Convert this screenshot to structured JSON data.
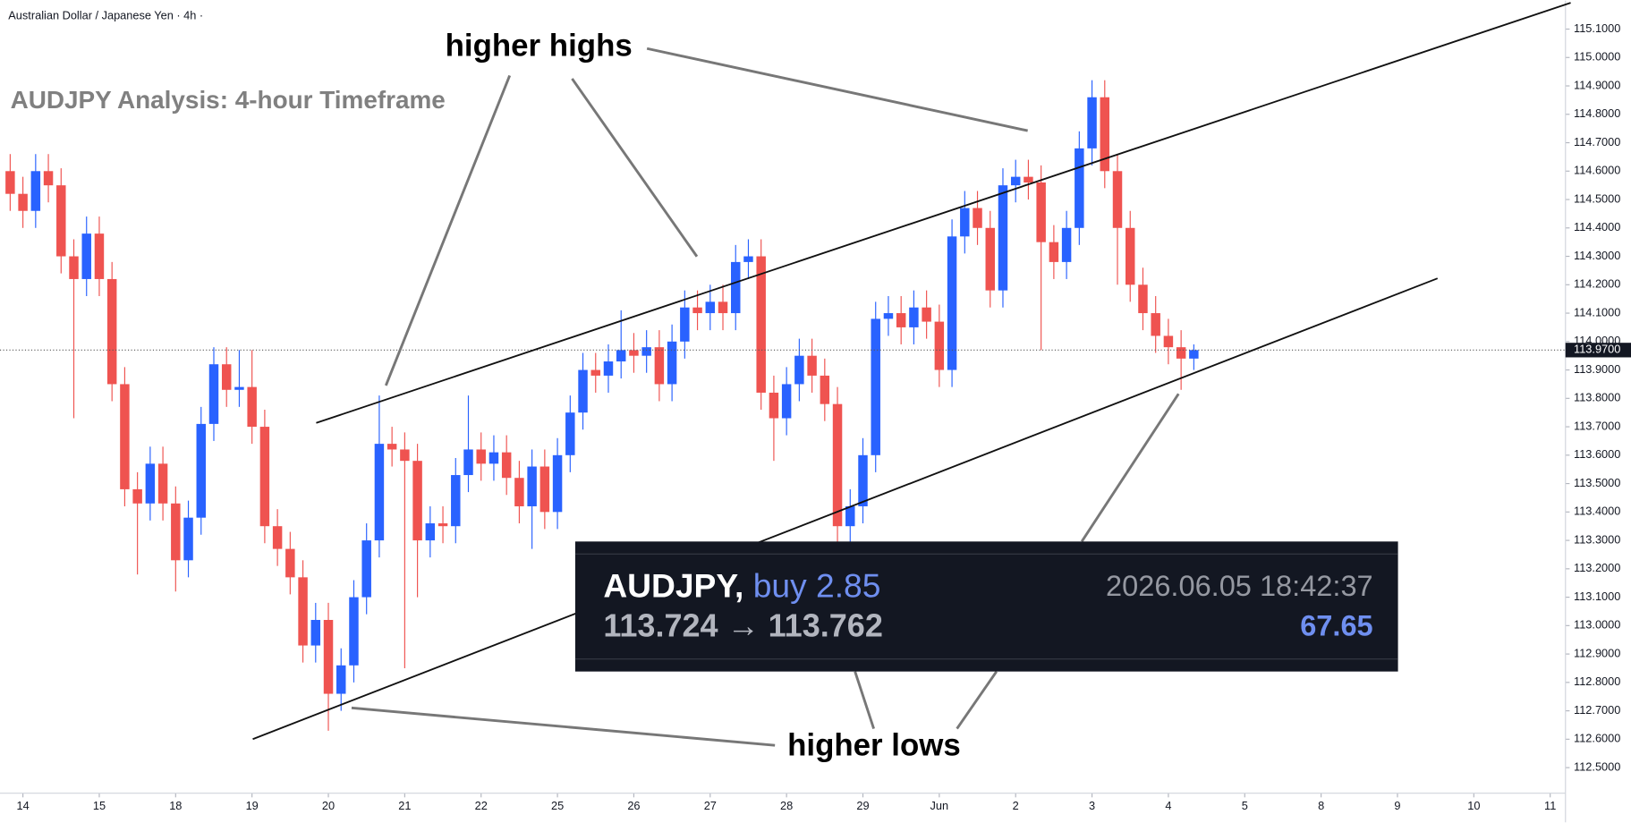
{
  "chart_data": {
    "type": "candlestick",
    "header": "Australian Dollar / Japanese Yen · 4h ·",
    "title": "AUDJPY Analysis: 4-hour Timeframe",
    "annotations": [
      {
        "text": "higher highs"
      },
      {
        "text": "higher lows"
      }
    ],
    "trade": {
      "symbol": "AUDJPY,",
      "side": "buy 2.85",
      "timestamp": "2026.06.05 18:42:37",
      "prices": "113.724 → 113.762",
      "result": "67.65"
    },
    "current_price": {
      "value": 113.97,
      "label": "113.9700"
    },
    "up_color": "#2962ff",
    "down_color": "#ef5350",
    "open": [
      114.6,
      114.52,
      114.46,
      114.6,
      114.55,
      114.3,
      114.22,
      114.38,
      114.22,
      113.85,
      113.48,
      113.43,
      113.57,
      113.43,
      113.23,
      113.38,
      113.71,
      113.92,
      113.83,
      113.84,
      113.7,
      113.35,
      113.27,
      113.17,
      112.93,
      113.02,
      112.76,
      112.86,
      113.1,
      113.3,
      113.64,
      113.62,
      113.58,
      113.3,
      113.36,
      113.35,
      113.53,
      113.62,
      113.57,
      113.61,
      113.52,
      113.42,
      113.56,
      113.4,
      113.6,
      113.75,
      113.9,
      113.88,
      113.93,
      113.97,
      113.95,
      113.98,
      113.85,
      114.0,
      114.12,
      114.1,
      114.14,
      114.1,
      114.28,
      114.3,
      113.82,
      113.73,
      113.85,
      113.95,
      113.88,
      113.78,
      113.35,
      113.42,
      113.6,
      114.08,
      114.1,
      114.05,
      114.12,
      114.07,
      113.9,
      114.37,
      114.47,
      114.4,
      114.18,
      114.55,
      114.58,
      114.56,
      114.35,
      114.28,
      114.4,
      114.68,
      114.86,
      114.6,
      114.4,
      114.2,
      114.1,
      114.02,
      113.98,
      113.94
    ],
    "high": [
      114.66,
      114.58,
      114.66,
      114.66,
      114.61,
      114.36,
      114.44,
      114.44,
      114.28,
      113.91,
      113.54,
      113.63,
      113.63,
      113.49,
      113.44,
      113.77,
      113.98,
      113.98,
      113.97,
      113.97,
      113.76,
      113.41,
      113.33,
      113.23,
      113.08,
      113.08,
      112.92,
      113.16,
      113.36,
      113.81,
      113.7,
      113.68,
      113.64,
      113.42,
      113.42,
      113.59,
      113.81,
      113.68,
      113.67,
      113.67,
      113.58,
      113.62,
      113.62,
      113.66,
      113.81,
      113.96,
      113.96,
      113.99,
      114.11,
      114.03,
      114.04,
      114.04,
      114.06,
      114.18,
      114.18,
      114.2,
      114.2,
      114.34,
      114.36,
      114.36,
      113.88,
      113.91,
      114.01,
      114.01,
      113.94,
      113.84,
      113.48,
      113.66,
      114.14,
      114.16,
      114.16,
      114.18,
      114.18,
      114.13,
      114.43,
      114.53,
      114.53,
      114.46,
      114.61,
      114.64,
      114.64,
      114.62,
      114.41,
      114.46,
      114.74,
      114.92,
      114.92,
      114.66,
      114.46,
      114.26,
      114.16,
      114.08,
      114.04,
      113.99
    ],
    "low": [
      114.46,
      114.4,
      114.4,
      114.49,
      114.24,
      113.73,
      114.16,
      114.16,
      113.79,
      113.42,
      113.18,
      113.37,
      113.37,
      113.12,
      113.17,
      113.32,
      113.65,
      113.77,
      113.77,
      113.64,
      113.29,
      113.21,
      113.11,
      112.87,
      112.87,
      112.63,
      112.7,
      112.8,
      113.04,
      113.24,
      113.56,
      112.85,
      113.1,
      113.24,
      113.29,
      113.29,
      113.47,
      113.51,
      113.51,
      113.46,
      113.36,
      113.27,
      113.34,
      113.34,
      113.54,
      113.69,
      113.82,
      113.82,
      113.87,
      113.89,
      113.89,
      113.79,
      113.79,
      113.94,
      114.04,
      114.04,
      114.04,
      114.04,
      114.22,
      113.76,
      113.58,
      113.67,
      113.79,
      113.82,
      113.72,
      113.29,
      113.29,
      113.36,
      113.54,
      114.02,
      113.99,
      113.99,
      114.01,
      113.84,
      113.84,
      114.31,
      114.34,
      114.12,
      114.12,
      114.49,
      114.5,
      113.97,
      114.22,
      114.22,
      114.34,
      114.62,
      114.54,
      114.2,
      114.14,
      114.04,
      113.96,
      113.92,
      113.83,
      113.9
    ],
    "close": [
      114.52,
      114.46,
      114.6,
      114.55,
      114.3,
      114.22,
      114.38,
      114.22,
      113.85,
      113.48,
      113.43,
      113.57,
      113.43,
      113.23,
      113.38,
      113.71,
      113.92,
      113.83,
      113.84,
      113.7,
      113.35,
      113.27,
      113.17,
      112.93,
      113.02,
      112.76,
      112.86,
      113.1,
      113.3,
      113.64,
      113.62,
      113.58,
      113.3,
      113.36,
      113.35,
      113.53,
      113.62,
      113.57,
      113.61,
      113.52,
      113.42,
      113.56,
      113.4,
      113.6,
      113.75,
      113.9,
      113.88,
      113.93,
      113.97,
      113.95,
      113.98,
      113.85,
      114.0,
      114.12,
      114.1,
      114.14,
      114.1,
      114.28,
      114.3,
      113.82,
      113.73,
      113.85,
      113.95,
      113.88,
      113.78,
      113.35,
      113.42,
      113.6,
      114.08,
      114.1,
      114.05,
      114.12,
      114.07,
      113.9,
      114.37,
      114.47,
      114.4,
      114.18,
      114.55,
      114.58,
      114.56,
      114.35,
      114.28,
      114.4,
      114.68,
      114.86,
      114.6,
      114.4,
      114.2,
      114.1,
      114.02,
      113.98,
      113.94,
      113.97
    ],
    "xlim": [
      -0.8,
      122.2
    ],
    "xticks": [
      {
        "value": 1,
        "label": "14"
      },
      {
        "value": 7,
        "label": "15"
      },
      {
        "value": 13,
        "label": "18"
      },
      {
        "value": 19,
        "label": "19"
      },
      {
        "value": 25,
        "label": "20"
      },
      {
        "value": 31,
        "label": "21"
      },
      {
        "value": 37,
        "label": "22"
      },
      {
        "value": 43,
        "label": "25"
      },
      {
        "value": 49,
        "label": "26"
      },
      {
        "value": 55,
        "label": "27"
      },
      {
        "value": 61,
        "label": "28"
      },
      {
        "value": 67,
        "label": "29"
      },
      {
        "value": 73,
        "label": "Jun"
      },
      {
        "value": 79,
        "label": "2"
      },
      {
        "value": 85,
        "label": "3"
      },
      {
        "value": 91,
        "label": "4"
      },
      {
        "value": 97,
        "label": "5"
      },
      {
        "value": 103,
        "label": "8"
      },
      {
        "value": 109,
        "label": "9"
      },
      {
        "value": 115,
        "label": "10"
      },
      {
        "value": 121,
        "label": "11"
      }
    ],
    "ylim": [
      112.41,
      115.2
    ],
    "yticks": [
      {
        "value": 112.5,
        "label": "112.5000"
      },
      {
        "value": 112.6,
        "label": "112.6000"
      },
      {
        "value": 112.7,
        "label": "112.7000"
      },
      {
        "value": 112.8,
        "label": "112.8000"
      },
      {
        "value": 112.9,
        "label": "112.9000"
      },
      {
        "value": 113.0,
        "label": "113.0000"
      },
      {
        "value": 113.1,
        "label": "113.1000"
      },
      {
        "value": 113.2,
        "label": "113.2000"
      },
      {
        "value": 113.3,
        "label": "113.3000"
      },
      {
        "value": 113.4,
        "label": "113.4000"
      },
      {
        "value": 113.5,
        "label": "113.5000"
      },
      {
        "value": 113.6,
        "label": "113.6000"
      },
      {
        "value": 113.7,
        "label": "113.7000"
      },
      {
        "value": 113.8,
        "label": "113.8000"
      },
      {
        "value": 113.9,
        "label": "113.9000"
      },
      {
        "value": 114.0,
        "label": "114.0000"
      },
      {
        "value": 114.1,
        "label": "114.1000"
      },
      {
        "value": 114.2,
        "label": "114.2000"
      },
      {
        "value": 114.3,
        "label": "114.3000"
      },
      {
        "value": 114.4,
        "label": "114.4000"
      },
      {
        "value": 114.5,
        "label": "114.5000"
      },
      {
        "value": 114.6,
        "label": "114.6000"
      },
      {
        "value": 114.7,
        "label": "114.7000"
      },
      {
        "value": 114.8,
        "label": "114.8000"
      },
      {
        "value": 114.9,
        "label": "114.9000"
      },
      {
        "value": 115.0,
        "label": "115.0000"
      },
      {
        "value": 115.1,
        "label": "115.1000"
      }
    ]
  }
}
